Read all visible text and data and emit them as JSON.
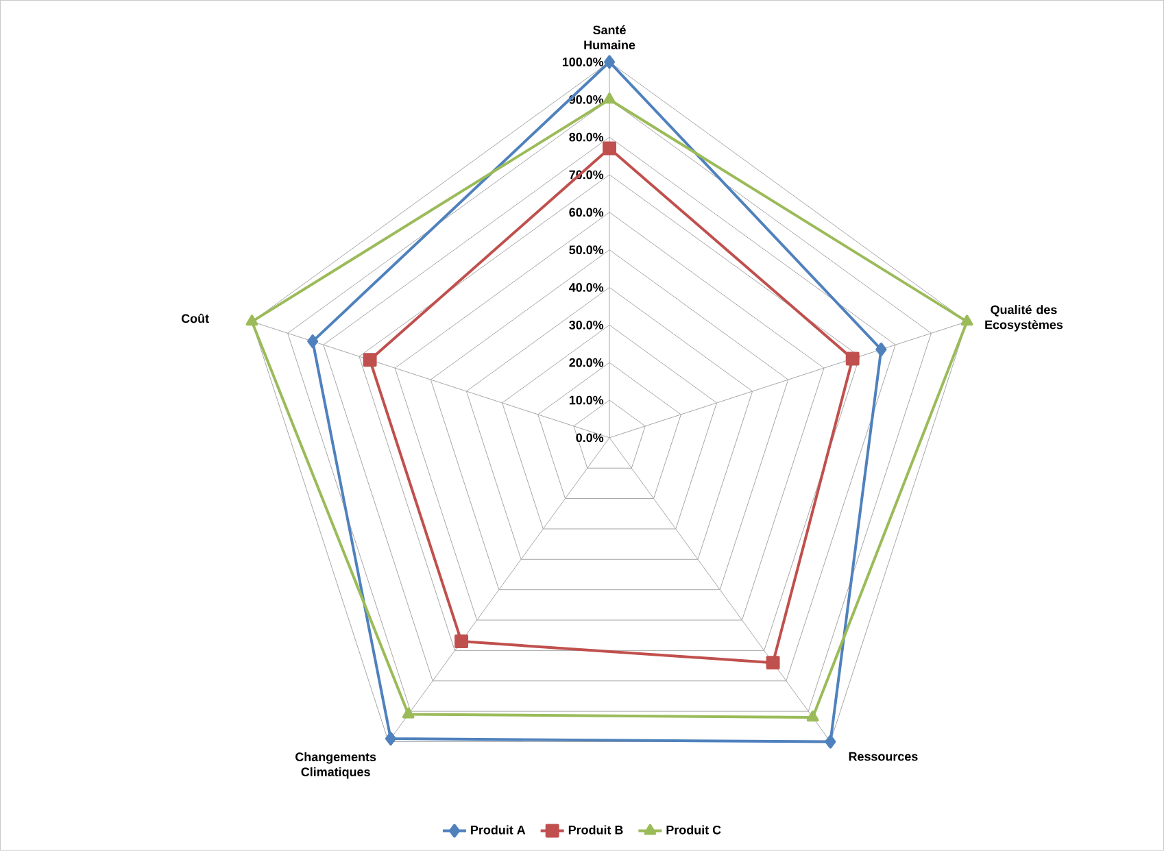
{
  "chart_data": {
    "type": "radar",
    "categories": [
      "Santé Humaine",
      "Qualité des Ecosystèmes",
      "Ressources",
      "Changements Climatiques",
      "Coût"
    ],
    "series": [
      {
        "name": "Produit A",
        "color": "#4f81bd",
        "marker": "diamond",
        "values": [
          100,
          76,
          100,
          99,
          83
        ]
      },
      {
        "name": "Produit B",
        "color": "#c0504d",
        "marker": "square",
        "values": [
          77,
          68,
          74,
          67,
          67
        ]
      },
      {
        "name": "Produit C",
        "color": "#9bbb59",
        "marker": "triangle",
        "values": [
          90,
          100,
          92,
          91,
          100
        ]
      }
    ],
    "ylim": [
      0,
      100
    ],
    "yticks": [
      {
        "value": 0,
        "label": "0.0%"
      },
      {
        "value": 10,
        "label": "10.0%"
      },
      {
        "value": 20,
        "label": "20.0%"
      },
      {
        "value": 30,
        "label": "30.0%"
      },
      {
        "value": 40,
        "label": "40.0%"
      },
      {
        "value": 50,
        "label": "50.0%"
      },
      {
        "value": 60,
        "label": "60.0%"
      },
      {
        "value": 70,
        "label": "70.0%"
      },
      {
        "value": 80,
        "label": "80.0%"
      },
      {
        "value": 90,
        "label": "90.0%"
      },
      {
        "value": 100,
        "label": "100.0%"
      }
    ],
    "grid": true,
    "legend": "bottom"
  }
}
